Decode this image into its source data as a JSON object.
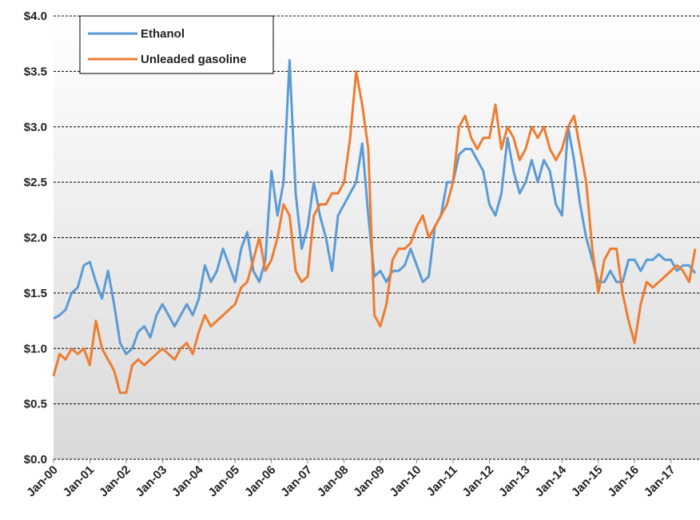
{
  "chart_data": {
    "type": "line",
    "x": [
      2000,
      2000.167,
      2000.333,
      2000.5,
      2000.667,
      2000.833,
      2001,
      2001.167,
      2001.333,
      2001.5,
      2001.667,
      2001.833,
      2002,
      2002.167,
      2002.333,
      2002.5,
      2002.667,
      2002.833,
      2003,
      2003.167,
      2003.333,
      2003.5,
      2003.667,
      2003.833,
      2004,
      2004.167,
      2004.333,
      2004.5,
      2004.667,
      2004.833,
      2005,
      2005.167,
      2005.333,
      2005.5,
      2005.667,
      2005.833,
      2006,
      2006.167,
      2006.333,
      2006.5,
      2006.667,
      2006.833,
      2007,
      2007.167,
      2007.333,
      2007.5,
      2007.667,
      2007.833,
      2008,
      2008.167,
      2008.333,
      2008.5,
      2008.667,
      2008.833,
      2009,
      2009.167,
      2009.333,
      2009.5,
      2009.667,
      2009.833,
      2010,
      2010.167,
      2010.333,
      2010.5,
      2010.667,
      2010.833,
      2011,
      2011.167,
      2011.333,
      2011.5,
      2011.667,
      2011.833,
      2012,
      2012.167,
      2012.333,
      2012.5,
      2012.667,
      2012.833,
      2013,
      2013.167,
      2013.333,
      2013.5,
      2013.667,
      2013.833,
      2014,
      2014.167,
      2014.333,
      2014.5,
      2014.667,
      2014.833,
      2015,
      2015.167,
      2015.333,
      2015.5,
      2015.667,
      2015.833,
      2016,
      2016.167,
      2016.333,
      2016.5,
      2016.667,
      2016.833,
      2017,
      2017.167,
      2017.333,
      2017.5,
      2017.667
    ],
    "series": [
      {
        "name": "Ethanol",
        "color": "#5b9bd5",
        "values": [
          1.27,
          1.3,
          1.35,
          1.5,
          1.55,
          1.75,
          1.78,
          1.6,
          1.45,
          1.7,
          1.4,
          1.05,
          0.95,
          1.0,
          1.15,
          1.2,
          1.1,
          1.3,
          1.4,
          1.3,
          1.2,
          1.3,
          1.4,
          1.3,
          1.45,
          1.75,
          1.6,
          1.7,
          1.9,
          1.75,
          1.6,
          1.9,
          2.05,
          1.7,
          1.6,
          1.8,
          2.6,
          2.2,
          2.5,
          3.6,
          2.4,
          1.9,
          2.1,
          2.5,
          2.2,
          2.0,
          1.7,
          2.2,
          2.3,
          2.4,
          2.5,
          2.85,
          2.2,
          1.65,
          1.7,
          1.6,
          1.7,
          1.7,
          1.75,
          1.9,
          1.75,
          1.6,
          1.65,
          2.1,
          2.2,
          2.5,
          2.5,
          2.75,
          2.8,
          2.8,
          2.7,
          2.6,
          2.3,
          2.2,
          2.4,
          2.9,
          2.6,
          2.4,
          2.5,
          2.7,
          2.5,
          2.7,
          2.6,
          2.3,
          2.2,
          3.0,
          2.7,
          2.3,
          2.0,
          1.8,
          1.6,
          1.6,
          1.7,
          1.6,
          1.6,
          1.8,
          1.8,
          1.7,
          1.8,
          1.8,
          1.85,
          1.8,
          1.8,
          1.7,
          1.75,
          1.75,
          1.68
        ]
      },
      {
        "name": "Unleaded gasoline",
        "color": "#ed7d31",
        "values": [
          0.75,
          0.95,
          0.9,
          1.0,
          0.95,
          1.0,
          0.85,
          1.25,
          1.0,
          0.9,
          0.8,
          0.6,
          0.6,
          0.85,
          0.9,
          0.85,
          0.9,
          0.95,
          1.0,
          0.95,
          0.9,
          1.0,
          1.05,
          0.95,
          1.15,
          1.3,
          1.2,
          1.25,
          1.3,
          1.35,
          1.4,
          1.55,
          1.6,
          1.8,
          2.0,
          1.7,
          1.8,
          2.0,
          2.3,
          2.2,
          1.7,
          1.6,
          1.65,
          2.2,
          2.3,
          2.3,
          2.4,
          2.4,
          2.5,
          2.9,
          3.5,
          3.2,
          2.8,
          1.3,
          1.2,
          1.4,
          1.8,
          1.9,
          1.9,
          1.95,
          2.1,
          2.2,
          2.0,
          2.1,
          2.2,
          2.3,
          2.5,
          3.0,
          3.1,
          2.9,
          2.8,
          2.9,
          2.9,
          3.2,
          2.8,
          3.0,
          2.9,
          2.7,
          2.8,
          3.0,
          2.9,
          3.0,
          2.8,
          2.7,
          2.8,
          3.0,
          3.1,
          2.8,
          2.5,
          1.9,
          1.5,
          1.8,
          1.9,
          1.9,
          1.5,
          1.25,
          1.05,
          1.4,
          1.6,
          1.55,
          1.6,
          1.65,
          1.7,
          1.75,
          1.7,
          1.6,
          1.9
        ]
      }
    ],
    "xlim": [
      2000,
      2017.8
    ],
    "xticks": [
      {
        "value": 2000,
        "label": "Jan-00"
      },
      {
        "value": 2001,
        "label": "Jan-01"
      },
      {
        "value": 2002,
        "label": "Jan-02"
      },
      {
        "value": 2003,
        "label": "Jan-03"
      },
      {
        "value": 2004,
        "label": "Jan-04"
      },
      {
        "value": 2005,
        "label": "Jan-05"
      },
      {
        "value": 2006,
        "label": "Jan-06"
      },
      {
        "value": 2007,
        "label": "Jan-07"
      },
      {
        "value": 2008,
        "label": "Jan-08"
      },
      {
        "value": 2009,
        "label": "Jan-09"
      },
      {
        "value": 2010,
        "label": "Jan-10"
      },
      {
        "value": 2011,
        "label": "Jan-11"
      },
      {
        "value": 2012,
        "label": "Jan-12"
      },
      {
        "value": 2013,
        "label": "Jan-13"
      },
      {
        "value": 2014,
        "label": "Jan-14"
      },
      {
        "value": 2015,
        "label": "Jan-15"
      },
      {
        "value": 2016,
        "label": "Jan-16"
      },
      {
        "value": 2017,
        "label": "Jan-17"
      }
    ],
    "ylim": [
      0,
      4
    ],
    "yticks": [
      {
        "value": 0,
        "label": "$0.0"
      },
      {
        "value": 0.5,
        "label": "$0.5"
      },
      {
        "value": 1,
        "label": "$1.0"
      },
      {
        "value": 1.5,
        "label": "$1.5"
      },
      {
        "value": 2,
        "label": "$2.0"
      },
      {
        "value": 2.5,
        "label": "$2.5"
      },
      {
        "value": 3,
        "label": "$3.0"
      },
      {
        "value": 3.5,
        "label": "$3.5"
      },
      {
        "value": 4,
        "label": "$4.0"
      }
    ],
    "grid": true,
    "legend": "top-left"
  }
}
